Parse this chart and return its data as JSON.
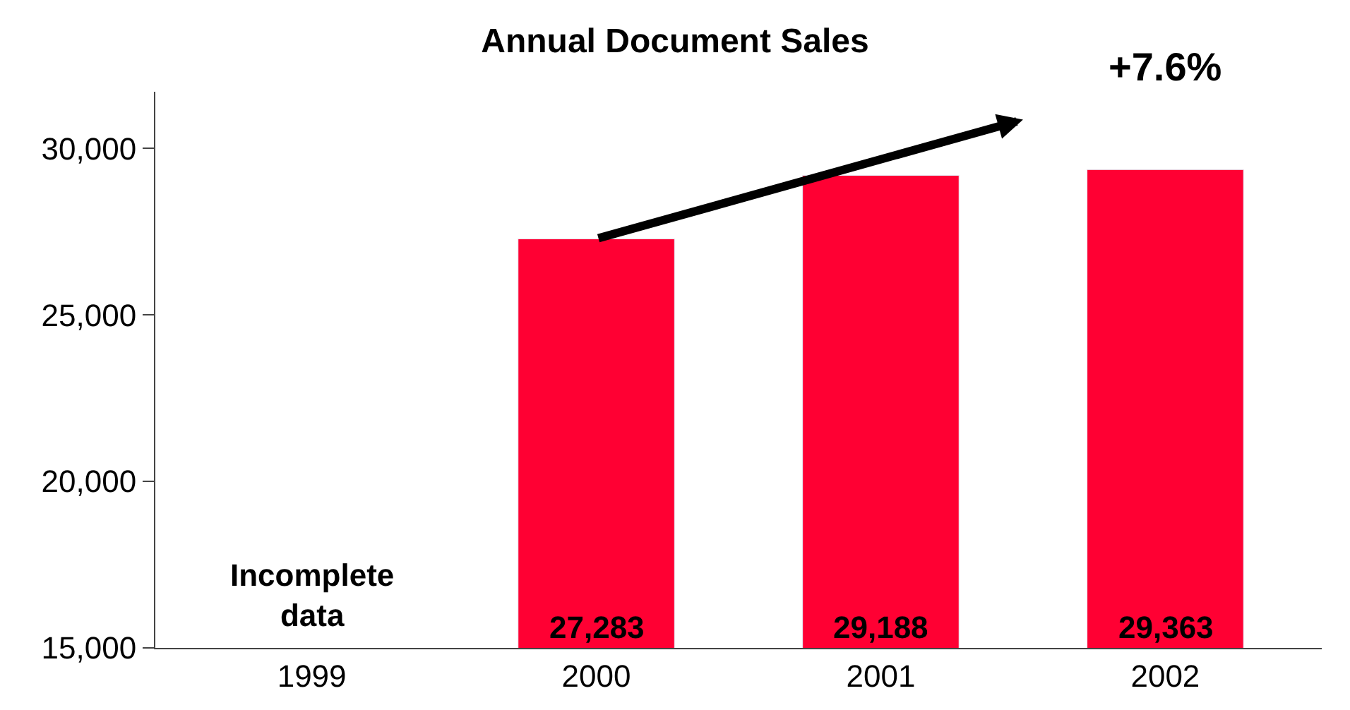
{
  "chart_data": {
    "type": "bar",
    "title": "Annual Document Sales",
    "categories": [
      "1999",
      "2000",
      "2001",
      "2002"
    ],
    "values": [
      null,
      27283,
      29188,
      29363
    ],
    "color": "#ff0033",
    "value_labels": [
      null,
      "27,283",
      "29,188",
      "29,363"
    ],
    "ylim": [
      15000,
      31700
    ],
    "yticks": [
      {
        "value": 15000,
        "label": "15,000"
      },
      {
        "value": 20000,
        "label": "20,000"
      },
      {
        "value": 25000,
        "label": "25,000"
      },
      {
        "value": 30000,
        "label": "30,000"
      }
    ],
    "annotations": [
      "Incomplete\ndata",
      "+7.6%"
    ]
  }
}
